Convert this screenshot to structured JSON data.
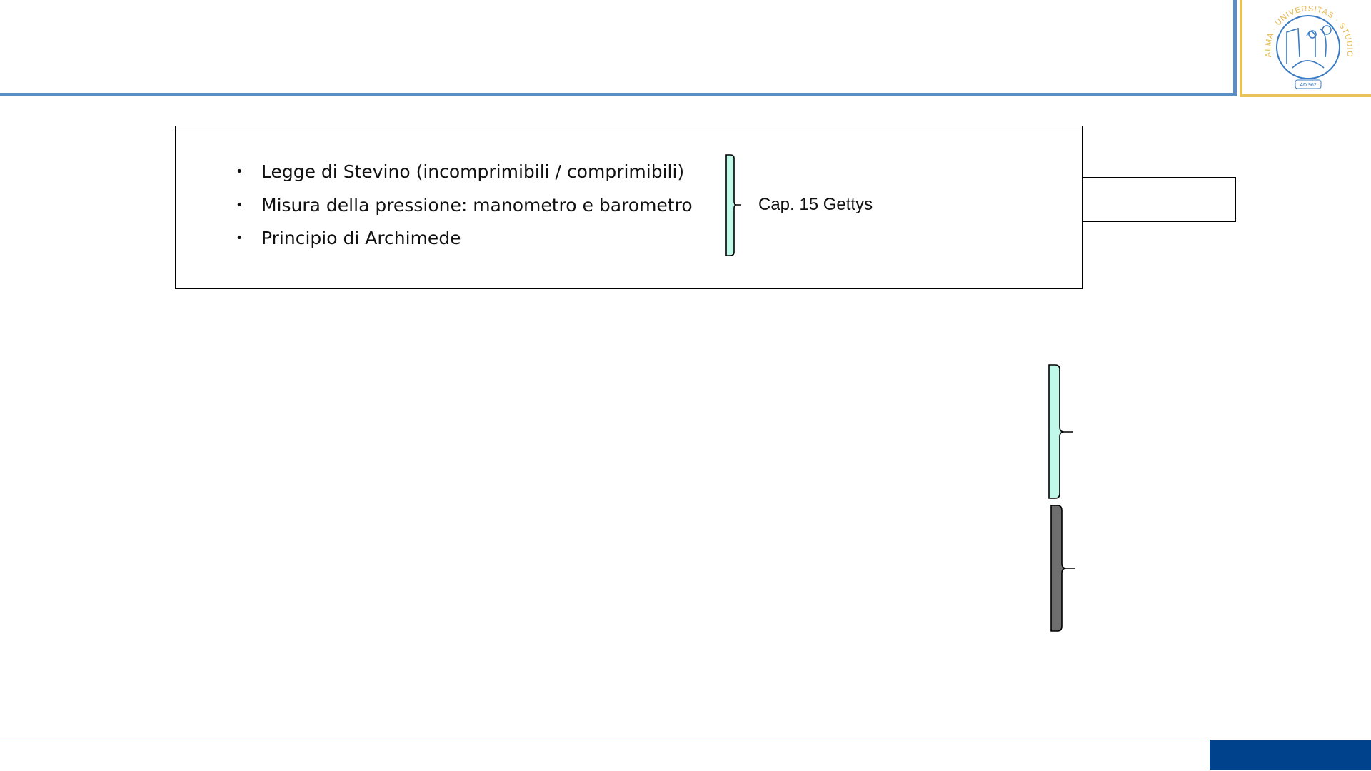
{
  "slide": {
    "bullets": [
      "Legge di Stevino (incomprimibili / comprimibili)",
      "Misura della pressione: manometro e barometro",
      "Principio di Archimede"
    ],
    "reference": "Cap. 15 Gettys"
  },
  "logo": {
    "text": "ALMA · UNIVERSITAS · STUDIORUM · PARMENSIS",
    "date": "AD 962"
  },
  "colors": {
    "accent_blue": "#5b8ec6",
    "logo_gold": "#e8c25a",
    "footer_blue": "#00428c",
    "brace_cyan": "#c0f8ea",
    "brace_gray": "#6e6e6e"
  }
}
